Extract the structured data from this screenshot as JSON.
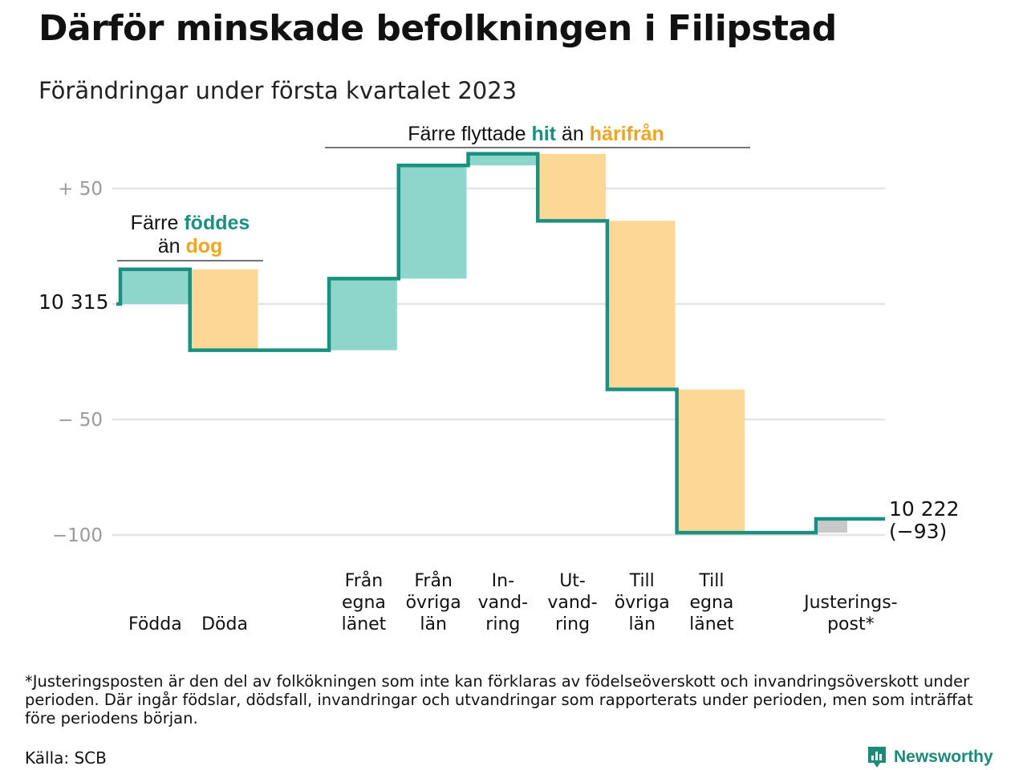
{
  "title": "Därför minskade befolkningen i Filipstad",
  "subtitle": "Förändringar under första kvartalet 2023",
  "colors": {
    "line": "#1a9080",
    "increase": "#8ed6cc",
    "decrease": "#fcd795",
    "adjustment": "#c8c8c8",
    "grid": "#e4e4e4",
    "accent_teal": "#1a9080",
    "accent_orange": "#f0a520"
  },
  "annotations": {
    "births_deaths": {
      "line1": "Färre ",
      "bold1": "föddes",
      "line2": "än ",
      "bold2": "dog"
    },
    "migration": {
      "pre": "Färre flyttade ",
      "bold1": "hit",
      "mid": " än ",
      "bold2": "härifrån"
    }
  },
  "chart_data": {
    "type": "waterfall",
    "start_label": "10 315",
    "end_label": "10 222",
    "end_change_label": "(−93)",
    "y_ticks": [
      {
        "value": 50,
        "label": "+ 50"
      },
      {
        "value": -50,
        "label": "− 50"
      },
      {
        "value": -100,
        "label": "−100"
      }
    ],
    "ylim": [
      -105,
      65
    ],
    "steps": [
      {
        "label_lines": [
          "Födda"
        ],
        "change": 15,
        "kind": "increase"
      },
      {
        "label_lines": [
          "Döda"
        ],
        "change": -35,
        "kind": "decrease"
      },
      {
        "label_lines": [],
        "change": 0,
        "kind": "gap"
      },
      {
        "label_lines": [
          "Från",
          "egna",
          "länet"
        ],
        "change": 31,
        "kind": "increase"
      },
      {
        "label_lines": [
          "Från",
          "övriga",
          "län"
        ],
        "change": 49,
        "kind": "increase"
      },
      {
        "label_lines": [
          "In-",
          "vand-",
          "ring"
        ],
        "change": 5,
        "kind": "increase"
      },
      {
        "label_lines": [
          "Ut-",
          "vand-",
          "ring"
        ],
        "change": -29,
        "kind": "decrease"
      },
      {
        "label_lines": [
          "Till",
          "övriga",
          "län"
        ],
        "change": -73,
        "kind": "decrease"
      },
      {
        "label_lines": [
          "Till",
          "egna",
          "länet"
        ],
        "change": -62,
        "kind": "decrease"
      },
      {
        "label_lines": [],
        "change": 0,
        "kind": "gap"
      },
      {
        "label_lines": [
          "Justerings-",
          "post*"
        ],
        "change": 6,
        "kind": "adjustment"
      }
    ],
    "total_change": -93
  },
  "footnote": "*Justeringsposten är den del av folkökningen som inte kan förklaras av födelseöverskott och invandringsöverskott under perioden. Där ingår födslar, dödsfall, invandringar och utvandringar som rapporterats under perioden, men som inträffat före periodens början.",
  "source": "Källa: SCB",
  "brand": {
    "name": "Newsworthy",
    "icon": "bar-chart-logo-icon"
  }
}
